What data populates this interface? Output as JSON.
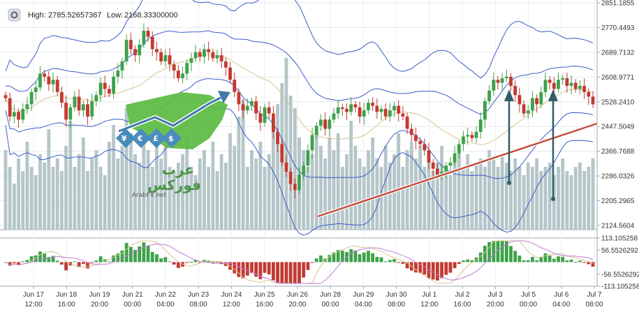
{
  "header": {
    "high_label": "High:",
    "high_value": "2785.52657367",
    "low_label": "Low:",
    "low_value": "2168.33300000"
  },
  "colors": {
    "up": "#3da24a",
    "down": "#c23a31",
    "volume": "#b5c6c9",
    "band": "#3b5bcc",
    "ma": "#d6c58c",
    "trend": "#c44d3a",
    "arrow": "#2e5e66",
    "osc_line_1": "#d6c58c",
    "osc_line_2": "#c27ad6"
  },
  "watermark": {
    "arabic_line_1": "عرب",
    "arabic_line_2": "فوركس",
    "site": "ArabFx.net"
  },
  "chart_data": {
    "type": "candlestick",
    "price_axis_ticks": [
      "2851.1855",
      "2770.4493",
      "2689.7132",
      "2608.9771",
      "2528.2410",
      "2447.5049",
      "2366.7688",
      "2286.0326",
      "2205.2965",
      "2124.5604"
    ],
    "price_range": [
      2124.5604,
      2851.1855
    ],
    "osc_axis_ticks": [
      "113.105258",
      "56.5526292",
      "-56.5526292",
      "-113.105258"
    ],
    "osc_range": [
      -113.105258,
      113.105258
    ],
    "time_labels": [
      {
        "d": "Jun 17",
        "t": "12:00"
      },
      {
        "d": "Jun 18",
        "t": "16:00"
      },
      {
        "d": "Jun 19",
        "t": "20:00"
      },
      {
        "d": "Jun 21",
        "t": "00:00"
      },
      {
        "d": "Jun 22",
        "t": "04:00"
      },
      {
        "d": "Jun 23",
        "t": "08:00"
      },
      {
        "d": "Jun 24",
        "t": "12:00"
      },
      {
        "d": "Jun 25",
        "t": "16:00"
      },
      {
        "d": "Jun 26",
        "t": "20:00"
      },
      {
        "d": "Jun 28",
        "t": "00:00"
      },
      {
        "d": "Jun 29",
        "t": "04:00"
      },
      {
        "d": "Jun 30",
        "t": "08:00"
      },
      {
        "d": "Jul 1",
        "t": "12:00"
      },
      {
        "d": "Jul 2",
        "t": "16:00"
      },
      {
        "d": "Jul 3",
        "t": "20:00"
      },
      {
        "d": "Jul 5",
        "t": "00:00"
      },
      {
        "d": "Jul 6",
        "t": "04:00"
      },
      {
        "d": "Jul 7",
        "t": "08:00"
      }
    ],
    "close": [
      2540,
      2480,
      2495,
      2470,
      2505,
      2520,
      2560,
      2575,
      2620,
      2610,
      2585,
      2600,
      2560,
      2525,
      2470,
      2510,
      2545,
      2500,
      2520,
      2480,
      2530,
      2550,
      2590,
      2570,
      2555,
      2610,
      2630,
      2660,
      2730,
      2700,
      2680,
      2715,
      2760,
      2740,
      2700,
      2690,
      2660,
      2680,
      2650,
      2630,
      2605,
      2620,
      2655,
      2670,
      2690,
      2675,
      2700,
      2690,
      2670,
      2680,
      2660,
      2640,
      2600,
      2560,
      2520,
      2500,
      2515,
      2530,
      2490,
      2460,
      2510,
      2490,
      2430,
      2390,
      2330,
      2300,
      2260,
      2240,
      2290,
      2320,
      2370,
      2420,
      2450,
      2470,
      2440,
      2470,
      2490,
      2510,
      2505,
      2495,
      2520,
      2510,
      2480,
      2500,
      2525,
      2515,
      2495,
      2505,
      2480,
      2500,
      2515,
      2490,
      2480,
      2440,
      2420,
      2400,
      2390,
      2370,
      2330,
      2310,
      2290,
      2300,
      2320,
      2330,
      2360,
      2390,
      2415,
      2420,
      2410,
      2430,
      2470,
      2530,
      2565,
      2600,
      2590,
      2605,
      2610,
      2580,
      2550,
      2520,
      2490,
      2500,
      2540,
      2520,
      2560,
      2600,
      2590,
      2570,
      2600,
      2605,
      2580,
      2590,
      2570,
      2580,
      2560,
      2545,
      2520
    ],
    "volume_rel": [
      0.38,
      0.3,
      0.22,
      0.34,
      0.28,
      0.42,
      0.3,
      0.26,
      0.36,
      0.32,
      0.48,
      0.3,
      0.34,
      0.28,
      0.4,
      0.52,
      0.3,
      0.36,
      0.44,
      0.28,
      0.34,
      0.38,
      0.3,
      0.26,
      0.42,
      0.5,
      0.34,
      0.4,
      0.58,
      0.46,
      0.36,
      0.32,
      0.44,
      0.38,
      0.3,
      0.42,
      0.34,
      0.4,
      0.3,
      0.28,
      0.32,
      0.36,
      0.44,
      0.3,
      0.26,
      0.34,
      0.38,
      0.3,
      0.42,
      0.28,
      0.36,
      0.32,
      0.46,
      0.4,
      0.54,
      0.62,
      0.3,
      0.38,
      0.34,
      0.42,
      0.3,
      0.36,
      0.52,
      0.6,
      0.7,
      0.82,
      0.64,
      0.58,
      0.44,
      0.38,
      0.3,
      0.36,
      0.48,
      0.4,
      0.34,
      0.44,
      0.38,
      0.46,
      0.3,
      0.36,
      0.52,
      0.4,
      0.34,
      0.3,
      0.38,
      0.44,
      0.34,
      0.3,
      0.4,
      0.32,
      0.36,
      0.46,
      0.3,
      0.38,
      0.42,
      0.34,
      0.4,
      0.3,
      0.34,
      0.28,
      0.32,
      0.4,
      0.3,
      0.26,
      0.34,
      0.38,
      0.3,
      0.36,
      0.28,
      0.32,
      0.34,
      0.3,
      0.38,
      0.34,
      0.3,
      0.36,
      0.32,
      0.28,
      0.34,
      0.3,
      0.26,
      0.32,
      0.3,
      0.34,
      0.28,
      0.3,
      0.32,
      0.26,
      0.3,
      0.34,
      0.28,
      0.26,
      0.3,
      0.32,
      0.28,
      0.3,
      0.34
    ]
  }
}
